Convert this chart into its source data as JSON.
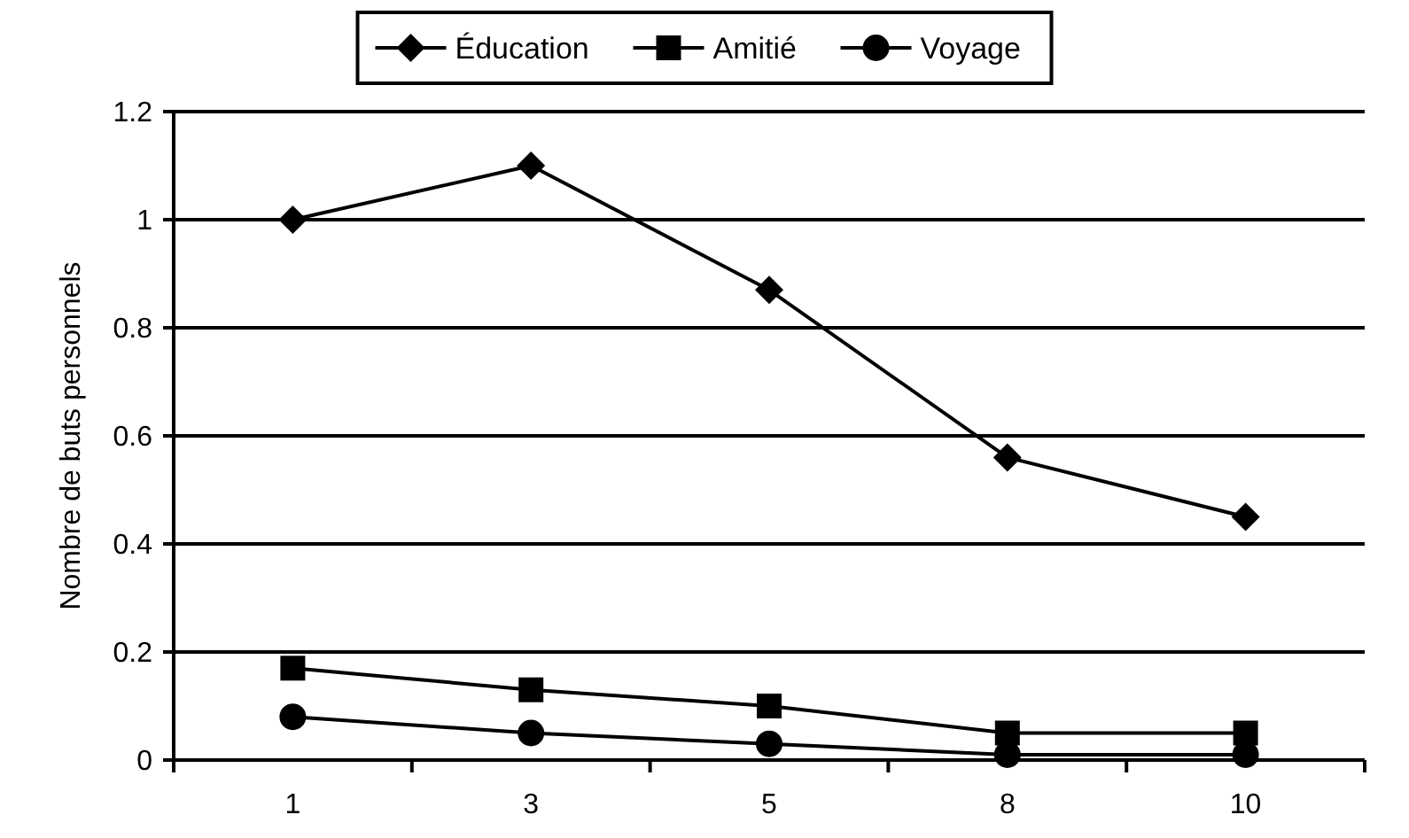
{
  "chart_data": {
    "type": "line",
    "ylabel": "Nombre de buts personnels",
    "categories": [
      "1",
      "3",
      "5",
      "8",
      "10"
    ],
    "series": [
      {
        "name": "Éducation",
        "color": "#000000",
        "marker": "diamond",
        "values": [
          1.0,
          1.1,
          0.87,
          0.56,
          0.45
        ]
      },
      {
        "name": "Amitié",
        "color": "#000000",
        "marker": "square",
        "values": [
          0.17,
          0.13,
          0.1,
          0.05,
          0.05
        ]
      },
      {
        "name": "Voyage",
        "color": "#000000",
        "marker": "circle",
        "values": [
          0.08,
          0.05,
          0.03,
          0.01,
          0.01
        ]
      }
    ],
    "ylim": [
      0,
      1.2
    ],
    "yticks": [
      0,
      0.2,
      0.4,
      0.6,
      0.8,
      1,
      1.2
    ],
    "grid": "y",
    "legend": "top",
    "line_style": "solid"
  }
}
